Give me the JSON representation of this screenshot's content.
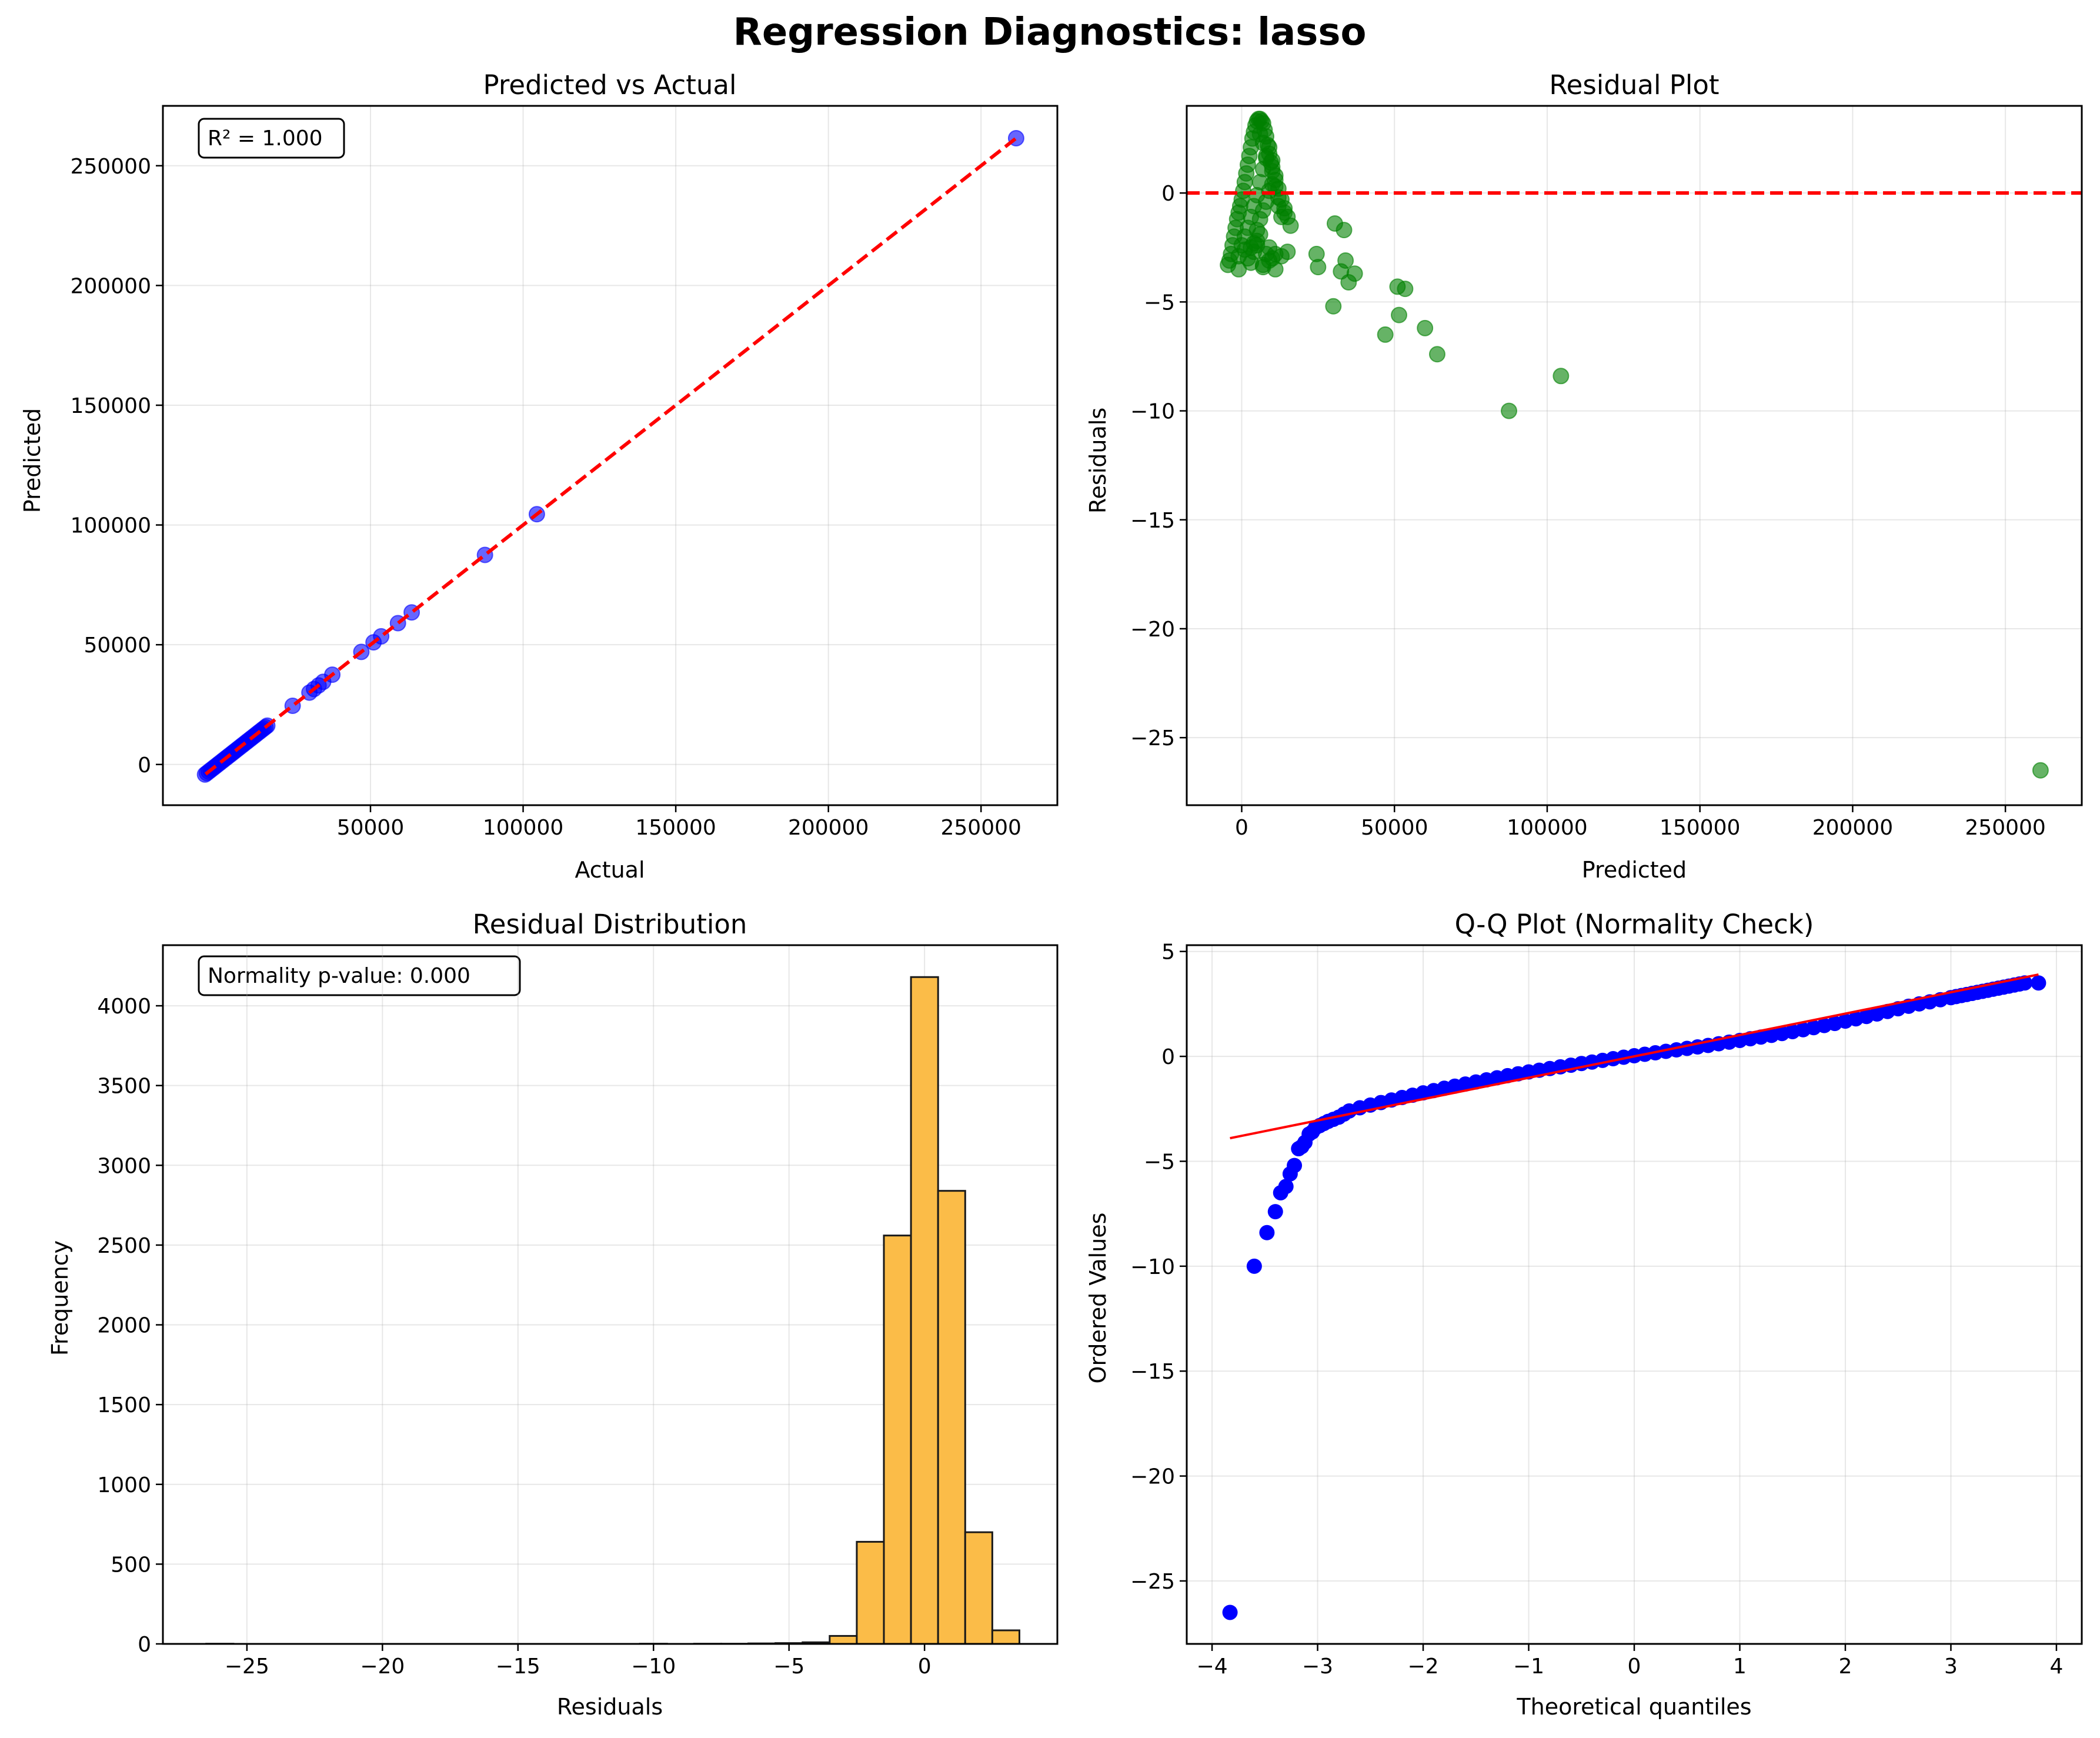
{
  "figure": {
    "title": "Regression Diagnostics: lasso"
  },
  "chart_data": [
    {
      "id": "pva",
      "type": "scatter",
      "title": "Predicted vs Actual",
      "xlabel": "Actual",
      "ylabel": "Predicted",
      "xlim": [
        -18000,
        275000
      ],
      "ylim": [
        -17000,
        275000
      ],
      "xticks": [
        50000,
        100000,
        150000,
        200000,
        250000
      ],
      "yticks": [
        0,
        50000,
        100000,
        150000,
        200000,
        250000
      ],
      "grid": true,
      "annotation": "R² = 1.000",
      "point_color": "#0000ff",
      "reference_line": {
        "color": "#ff0000",
        "style": "dashed",
        "from": [
          -4000,
          -4000
        ],
        "to": [
          262000,
          262000
        ]
      },
      "x": [
        -4200,
        -3600,
        -3000,
        -2400,
        -1800,
        -1200,
        -600,
        0,
        600,
        1200,
        1800,
        2400,
        3000,
        3600,
        4200,
        4800,
        5400,
        6000,
        6600,
        7200,
        7800,
        8400,
        9000,
        9600,
        10200,
        10800,
        11400,
        12000,
        12600,
        13200,
        13800,
        14400,
        15000,
        15600,
        16200,
        24500,
        30000,
        31500,
        33000,
        34500,
        37500,
        47000,
        51000,
        53500,
        59000,
        63500,
        87500,
        104500,
        261500
      ],
      "y": [
        -4200,
        -3600,
        -3000,
        -2400,
        -1800,
        -1200,
        -600,
        0,
        600,
        1200,
        1800,
        2400,
        3000,
        3600,
        4200,
        4800,
        5400,
        6000,
        6600,
        7200,
        7800,
        8400,
        9000,
        9600,
        10200,
        10800,
        11400,
        12000,
        12600,
        13200,
        13800,
        14400,
        15000,
        15600,
        16200,
        24500,
        30000,
        31500,
        33000,
        34500,
        37500,
        47000,
        51000,
        53500,
        59000,
        63500,
        87500,
        104500,
        261500
      ]
    },
    {
      "id": "resid",
      "type": "scatter",
      "title": "Residual Plot",
      "xlabel": "Predicted",
      "ylabel": "Residuals",
      "xlim": [
        -18000,
        275000
      ],
      "ylim": [
        -28.1,
        4.0
      ],
      "xticks": [
        0,
        50000,
        100000,
        150000,
        200000,
        250000
      ],
      "yticks": [
        0,
        -5,
        -10,
        -15,
        -20,
        -25
      ],
      "grid": true,
      "point_color": "#008000",
      "reference_line": {
        "color": "#ff0000",
        "style": "dashed",
        "y": 0
      },
      "x": [
        -4500,
        -4000,
        -3500,
        -3000,
        -2500,
        -2000,
        -1500,
        -1000,
        -500,
        0,
        500,
        1000,
        1500,
        2000,
        2500,
        3000,
        3500,
        4000,
        4500,
        5000,
        5500,
        6000,
        6500,
        7000,
        7500,
        8000,
        8500,
        9000,
        9500,
        10000,
        11000,
        12000,
        13000,
        14000,
        15000,
        16000,
        4000,
        5000,
        6000,
        7000,
        8000,
        9000,
        10000,
        11000,
        12000,
        -1000,
        0,
        1000,
        2000,
        3000,
        4000,
        5000,
        6000,
        7000,
        8000,
        9000,
        10000,
        11000,
        12000,
        13000,
        14000,
        2000,
        3000,
        4000,
        5000,
        6000,
        7000,
        8000,
        9000,
        10000,
        11000,
        6000,
        7000,
        8000,
        10000,
        -1000,
        1000,
        3000,
        5000,
        7000,
        9000,
        11000,
        13000,
        15000,
        30500,
        33500,
        24500,
        25000,
        30000,
        32500,
        34000,
        35000,
        37000,
        51000,
        53500,
        51500,
        47000,
        60000,
        64000,
        87500,
        104500,
        261500
      ],
      "y": [
        -3.3,
        -3.1,
        -2.8,
        -2.4,
        -2.0,
        -1.6,
        -1.2,
        -0.9,
        -0.6,
        -0.3,
        0.1,
        0.5,
        0.9,
        1.3,
        1.7,
        2.1,
        2.5,
        2.8,
        3.1,
        3.3,
        3.4,
        3.4,
        3.3,
        3.2,
        2.9,
        2.6,
        2.2,
        1.8,
        1.4,
        1.0,
        0.6,
        0.2,
        -0.3,
        -0.7,
        -1.1,
        -1.5,
        -2.3,
        -1.7,
        -1.2,
        -0.8,
        -0.4,
        0.1,
        0.4,
        0.8,
        -0.2,
        -2.9,
        -2.4,
        -2.0,
        -1.6,
        -1.1,
        -0.6,
        -0.1,
        0.5,
        1.1,
        1.7,
        2.1,
        1.2,
        0.3,
        -0.6,
        -1.1,
        -0.9,
        -3.0,
        -2.5,
        -2.7,
        -2.2,
        -1.9,
        -3.3,
        -2.8,
        -2.5,
        -3.0,
        -2.8,
        2.7,
        2.3,
        1.6,
        1.5,
        -3.5,
        -2.6,
        -3.2,
        -2.4,
        -3.4,
        -3.1,
        -3.5,
        -2.9,
        -2.7,
        -1.4,
        -1.7,
        -2.8,
        -3.4,
        -5.2,
        -3.6,
        -3.1,
        -4.1,
        -3.7,
        -4.3,
        -4.4,
        -5.6,
        -6.5,
        -6.2,
        -7.4,
        -10.0,
        -8.4,
        -26.5
      ]
    },
    {
      "id": "hist",
      "type": "bar",
      "title": "Residual Distribution",
      "xlabel": "Residuals",
      "ylabel": "Frequency",
      "xlim": [
        -28.1,
        4.9
      ],
      "ylim": [
        0,
        4380
      ],
      "xticks": [
        -25,
        -20,
        -15,
        -10,
        -5,
        0
      ],
      "yticks": [
        0,
        500,
        1000,
        1500,
        2000,
        2500,
        3000,
        3500,
        4000
      ],
      "grid": true,
      "annotation": "Normality p-value: 0.000",
      "bar_color": "#fbbc48",
      "edge_color": "#1a1a1a",
      "bin_edges": [
        -26.5,
        -25.5,
        -24.5,
        -23.5,
        -22.5,
        -21.5,
        -20.5,
        -19.5,
        -18.5,
        -17.5,
        -16.5,
        -15.5,
        -14.5,
        -13.5,
        -12.5,
        -11.5,
        -10.5,
        -9.5,
        -8.5,
        -7.5,
        -6.5,
        -5.5,
        -4.5,
        -3.5,
        -2.5,
        -1.5,
        -0.5,
        0.5,
        1.5,
        2.5,
        3.5
      ],
      "values": [
        1,
        0,
        0,
        0,
        0,
        0,
        0,
        0,
        0,
        0,
        0,
        0,
        0,
        0,
        0,
        0,
        1,
        0,
        1,
        1,
        3,
        5,
        10,
        50,
        640,
        2560,
        4180,
        2840,
        700,
        85
      ]
    },
    {
      "id": "qq",
      "type": "scatter",
      "title": "Q-Q Plot (Normality Check)",
      "xlabel": "Theoretical quantiles",
      "ylabel": "Ordered Values",
      "xlim": [
        -4.24,
        4.24
      ],
      "ylim": [
        -28.0,
        5.3
      ],
      "xticks": [
        -4,
        -3,
        -2,
        -1,
        0,
        1,
        2,
        3,
        4
      ],
      "yticks": [
        5,
        0,
        -5,
        -10,
        -15,
        -20,
        -25
      ],
      "grid": true,
      "point_color": "#0000ff",
      "fit_line": {
        "color": "#ff0000",
        "from": [
          -3.83,
          -3.9
        ],
        "to": [
          3.83,
          3.9
        ]
      },
      "x": [
        -3.83,
        -3.6,
        -3.48,
        -3.4,
        -3.35,
        -3.3,
        -3.26,
        -3.22,
        -3.18,
        -3.15,
        -3.12,
        -3.08,
        -3.05,
        -3.02,
        -2.98,
        -2.94,
        -2.9,
        -2.85,
        -2.8,
        -2.75,
        -2.7,
        -2.6,
        -2.5,
        -2.4,
        -2.3,
        -2.2,
        -2.1,
        -2.0,
        -1.9,
        -1.8,
        -1.7,
        -1.6,
        -1.5,
        -1.4,
        -1.3,
        -1.2,
        -1.1,
        -1.0,
        -0.9,
        -0.8,
        -0.7,
        -0.6,
        -0.5,
        -0.4,
        -0.3,
        -0.2,
        -0.1,
        0.0,
        0.1,
        0.2,
        0.3,
        0.4,
        0.5,
        0.6,
        0.7,
        0.8,
        0.9,
        1.0,
        1.1,
        1.2,
        1.3,
        1.4,
        1.5,
        1.6,
        1.7,
        1.8,
        1.9,
        2.0,
        2.1,
        2.2,
        2.3,
        2.4,
        2.5,
        2.6,
        2.7,
        2.8,
        2.9,
        3.0,
        3.05,
        3.1,
        3.15,
        3.2,
        3.25,
        3.3,
        3.35,
        3.4,
        3.45,
        3.5,
        3.55,
        3.6,
        3.65,
        3.7,
        3.83
      ],
      "y": [
        -26.5,
        -10.0,
        -8.4,
        -7.4,
        -6.5,
        -6.2,
        -5.6,
        -5.2,
        -4.4,
        -4.3,
        -4.1,
        -3.7,
        -3.6,
        -3.4,
        -3.3,
        -3.2,
        -3.1,
        -3.0,
        -2.9,
        -2.75,
        -2.6,
        -2.45,
        -2.32,
        -2.2,
        -2.08,
        -1.96,
        -1.85,
        -1.74,
        -1.63,
        -1.52,
        -1.42,
        -1.32,
        -1.22,
        -1.12,
        -1.02,
        -0.92,
        -0.83,
        -0.74,
        -0.66,
        -0.58,
        -0.5,
        -0.42,
        -0.34,
        -0.27,
        -0.19,
        -0.11,
        -0.04,
        0.03,
        0.1,
        0.17,
        0.24,
        0.31,
        0.38,
        0.45,
        0.52,
        0.6,
        0.68,
        0.76,
        0.84,
        0.92,
        1.0,
        1.09,
        1.18,
        1.27,
        1.37,
        1.47,
        1.57,
        1.68,
        1.79,
        1.9,
        2.02,
        2.14,
        2.27,
        2.39,
        2.5,
        2.6,
        2.7,
        2.8,
        2.85,
        2.9,
        2.95,
        3.0,
        3.05,
        3.1,
        3.15,
        3.2,
        3.25,
        3.3,
        3.35,
        3.4,
        3.45,
        3.5,
        3.5
      ]
    }
  ]
}
